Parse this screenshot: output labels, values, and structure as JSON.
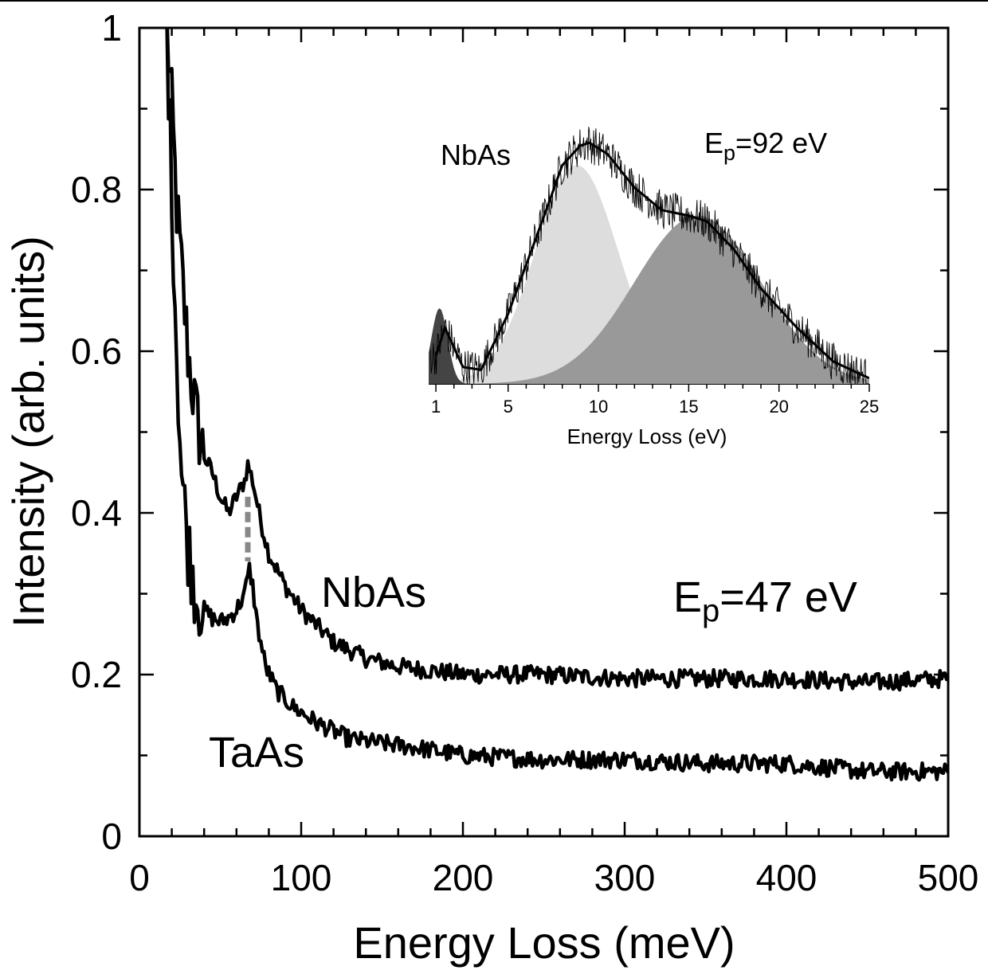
{
  "chart_data": [
    {
      "type": "line",
      "xlabel": "Energy Loss (meV)",
      "ylabel": "Intensity (arb. units)",
      "xlim": [
        0,
        500
      ],
      "ylim": [
        0,
        1
      ],
      "x_ticks": [
        0,
        100,
        200,
        300,
        400,
        500
      ],
      "y_ticks": [
        0,
        0.2,
        0.4,
        0.6,
        0.8,
        1
      ],
      "x_tick_labels": [
        "0",
        "100",
        "200",
        "300",
        "400",
        "500"
      ],
      "y_tick_labels": [
        "0",
        "0.2",
        "0.4",
        "0.6",
        "0.8",
        "1"
      ],
      "annotation": {
        "main": "E",
        "sub": "p",
        "rest": "=47 eV"
      },
      "marker": {
        "x": 67,
        "y_range": [
          0.34,
          0.42
        ],
        "color": "#888888"
      },
      "series": [
        {
          "name": "NbAs",
          "points": [
            [
              17,
              1.0
            ],
            [
              20,
              0.9
            ],
            [
              23,
              0.78
            ],
            [
              26,
              0.7
            ],
            [
              30,
              0.6
            ],
            [
              35,
              0.52
            ],
            [
              40,
              0.47
            ],
            [
              45,
              0.45
            ],
            [
              50,
              0.42
            ],
            [
              55,
              0.4
            ],
            [
              60,
              0.42
            ],
            [
              65,
              0.44
            ],
            [
              67,
              0.46
            ],
            [
              70,
              0.44
            ],
            [
              75,
              0.39
            ],
            [
              80,
              0.35
            ],
            [
              90,
              0.31
            ],
            [
              100,
              0.28
            ],
            [
              110,
              0.26
            ],
            [
              120,
              0.24
            ],
            [
              140,
              0.22
            ],
            [
              160,
              0.21
            ],
            [
              180,
              0.205
            ],
            [
              200,
              0.2
            ],
            [
              250,
              0.2
            ],
            [
              300,
              0.195
            ],
            [
              350,
              0.195
            ],
            [
              400,
              0.195
            ],
            [
              450,
              0.19
            ],
            [
              500,
              0.195
            ]
          ]
        },
        {
          "name": "TaAs",
          "points": [
            [
              17,
              1.0
            ],
            [
              20,
              0.8
            ],
            [
              23,
              0.6
            ],
            [
              26,
              0.45
            ],
            [
              30,
              0.36
            ],
            [
              35,
              0.3
            ],
            [
              40,
              0.28
            ],
            [
              45,
              0.27
            ],
            [
              50,
              0.265
            ],
            [
              55,
              0.27
            ],
            [
              60,
              0.28
            ],
            [
              65,
              0.3
            ],
            [
              68,
              0.33
            ],
            [
              70,
              0.31
            ],
            [
              73,
              0.26
            ],
            [
              78,
              0.21
            ],
            [
              85,
              0.18
            ],
            [
              95,
              0.16
            ],
            [
              110,
              0.14
            ],
            [
              130,
              0.12
            ],
            [
              150,
              0.115
            ],
            [
              170,
              0.11
            ],
            [
              200,
              0.1
            ],
            [
              250,
              0.095
            ],
            [
              300,
              0.095
            ],
            [
              350,
              0.09
            ],
            [
              400,
              0.09
            ],
            [
              450,
              0.08
            ],
            [
              500,
              0.08
            ]
          ]
        }
      ]
    },
    {
      "type": "area",
      "xlabel": "Energy Loss (eV)",
      "xlim": [
        0.6,
        25
      ],
      "ylim": [
        0,
        1
      ],
      "x_ticks": [
        1,
        5,
        10,
        15,
        20,
        25
      ],
      "x_tick_labels": [
        "1",
        "5",
        "10",
        "15",
        "20",
        "25"
      ],
      "label": "NbAs",
      "annotation": {
        "main": "E",
        "sub": "p",
        "rest": "=92 eV"
      },
      "fit_components": [
        {
          "name": "peak-1",
          "center": 1.2,
          "height": 0.27,
          "width": 0.45,
          "color": "#444444"
        },
        {
          "name": "peak-2",
          "center": 8.8,
          "height": 0.78,
          "width": 2.3,
          "color": "#dddddd"
        },
        {
          "name": "peak-3",
          "center": 15.5,
          "height": 0.6,
          "width": 3.5,
          "color": "#999999"
        }
      ],
      "fit_curve": [
        [
          1,
          0.1
        ],
        [
          1.5,
          0.2
        ],
        [
          2.5,
          0.06
        ],
        [
          3.5,
          0.05
        ],
        [
          5,
          0.25
        ],
        [
          7,
          0.6
        ],
        [
          8,
          0.78
        ],
        [
          9,
          0.85
        ],
        [
          9.5,
          0.86
        ],
        [
          10.5,
          0.82
        ],
        [
          12,
          0.7
        ],
        [
          13.5,
          0.62
        ],
        [
          15,
          0.6
        ],
        [
          16,
          0.58
        ],
        [
          17.5,
          0.48
        ],
        [
          19,
          0.34
        ],
        [
          21,
          0.2
        ],
        [
          23,
          0.08
        ],
        [
          25,
          0.02
        ]
      ]
    }
  ]
}
